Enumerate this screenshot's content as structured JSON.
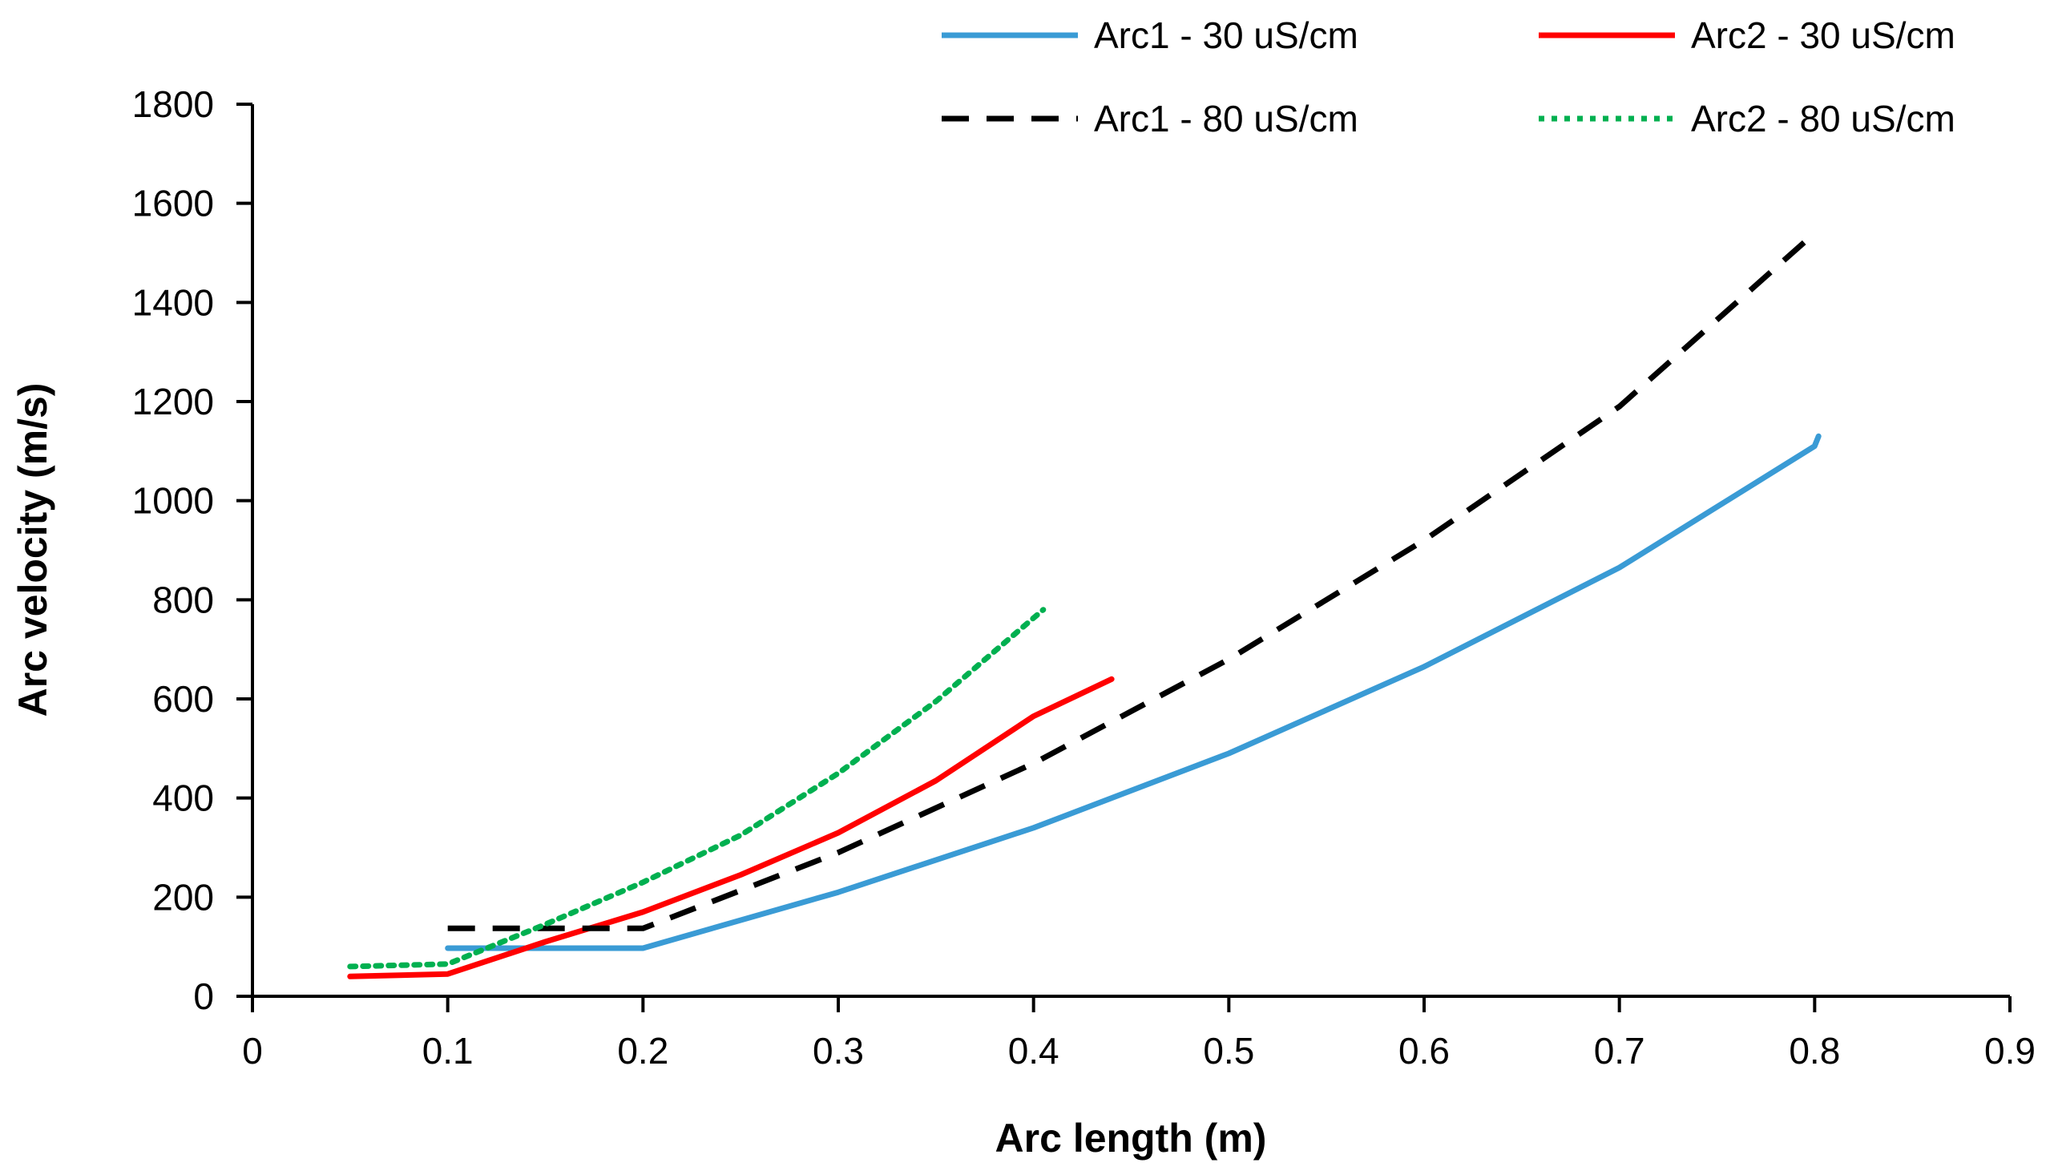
{
  "chart_data": {
    "type": "line",
    "title": "",
    "xlabel": "Arc length (m)",
    "ylabel": "Arc velocity (m/s)",
    "xlim": [
      0,
      0.9
    ],
    "ylim": [
      0,
      1800
    ],
    "xticks": [
      "0",
      "0.1",
      "0.2",
      "0.3",
      "0.4",
      "0.5",
      "0.6",
      "0.7",
      "0.8",
      "0.9"
    ],
    "yticks": [
      "0",
      "200",
      "400",
      "600",
      "800",
      "1000",
      "1200",
      "1400",
      "1600",
      "1800"
    ],
    "grid": false,
    "legend_position": "top-right",
    "series": [
      {
        "name": "Arc1 - 30 uS/cm",
        "color": "#3A9BD5",
        "style": "solid",
        "x": [
          0.1,
          0.2,
          0.3,
          0.4,
          0.5,
          0.6,
          0.7,
          0.8,
          0.802
        ],
        "y": [
          97,
          97,
          210,
          340,
          490,
          665,
          865,
          1110,
          1130
        ]
      },
      {
        "name": "Arc2 - 30 uS/cm",
        "color": "#FF0000",
        "style": "solid",
        "x": [
          0.05,
          0.1,
          0.15,
          0.2,
          0.25,
          0.3,
          0.35,
          0.4,
          0.44
        ],
        "y": [
          40,
          45,
          110,
          170,
          245,
          330,
          435,
          565,
          640
        ]
      },
      {
        "name": "Arc1 - 80 uS/cm",
        "color": "#000000",
        "style": "dashed",
        "x": [
          0.1,
          0.2,
          0.3,
          0.4,
          0.5,
          0.6,
          0.7,
          0.8
        ],
        "y": [
          137,
          137,
          290,
          470,
          680,
          920,
          1190,
          1540
        ]
      },
      {
        "name": "Arc2 - 80 uS/cm",
        "color": "#00B050",
        "style": "dotted",
        "x": [
          0.05,
          0.1,
          0.15,
          0.2,
          0.25,
          0.3,
          0.35,
          0.405
        ],
        "y": [
          60,
          65,
          145,
          230,
          325,
          450,
          595,
          780
        ]
      }
    ]
  }
}
